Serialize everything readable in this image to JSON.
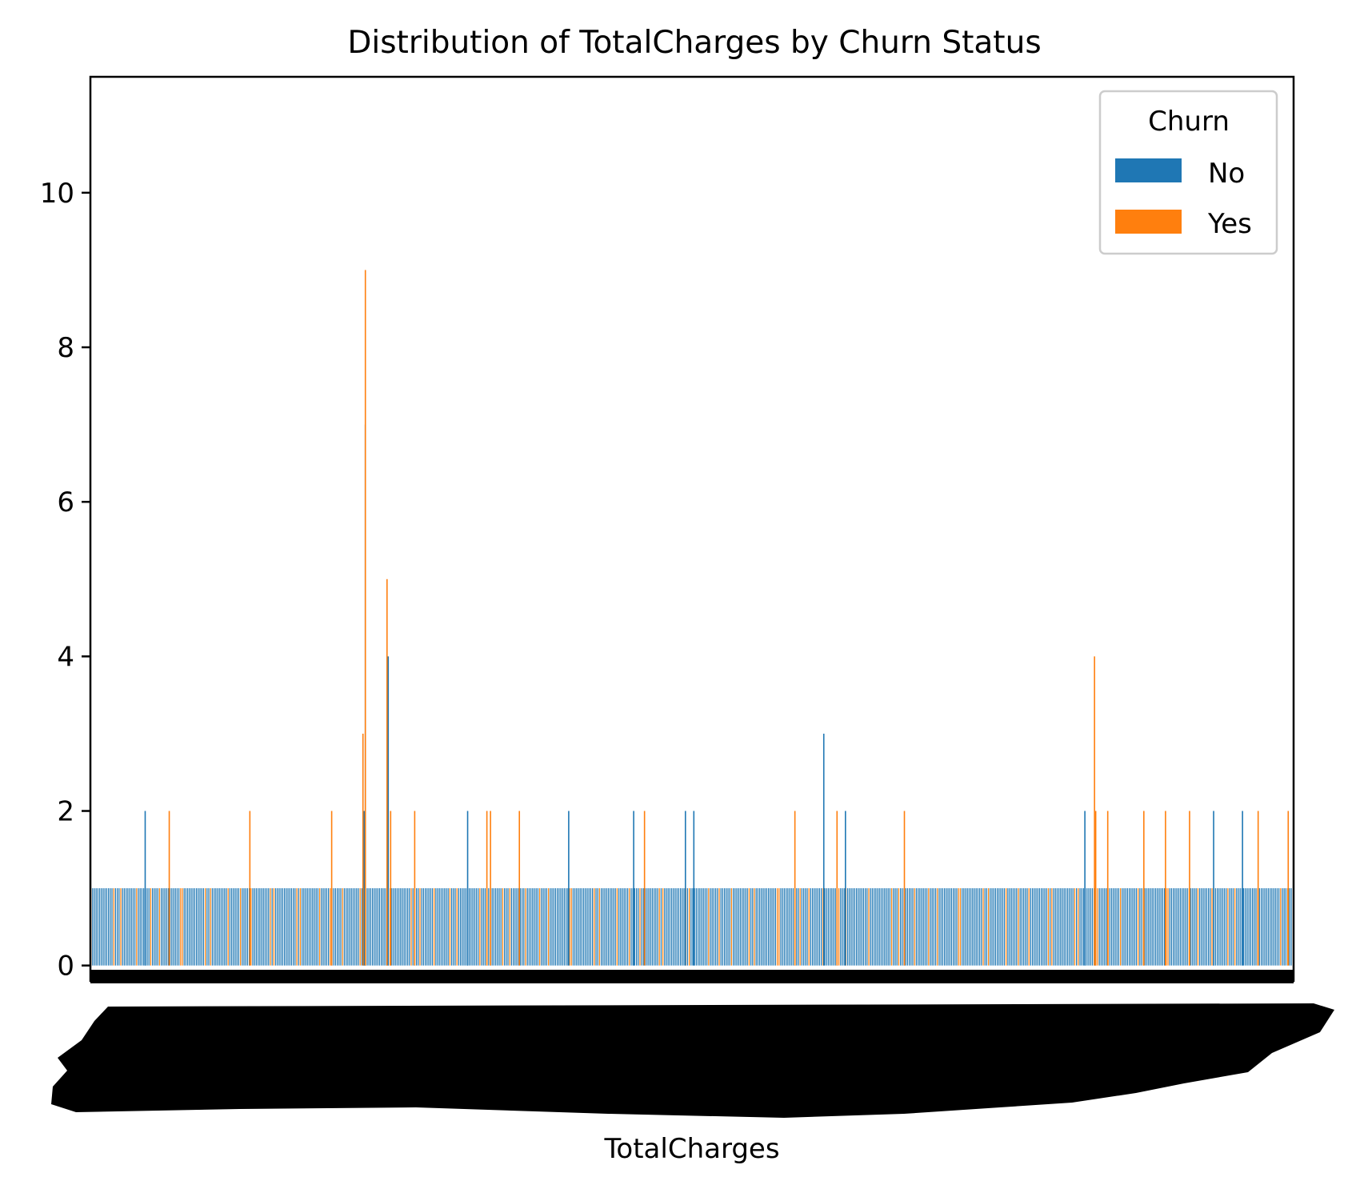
{
  "chart_data": {
    "type": "bar",
    "title": "Distribution of TotalCharges by Churn Status",
    "xlabel": "TotalCharges",
    "ylabel": "",
    "ylim": [
      -0.2,
      11.5
    ],
    "yticks": [
      0,
      2,
      4,
      6,
      8,
      10
    ],
    "grid": false,
    "legend": {
      "title": "Churn",
      "placement": "top-right",
      "entries": [
        {
          "name": "No",
          "color": "#1f77b4"
        },
        {
          "name": "Yes",
          "color": "#ff7f0e"
        }
      ]
    },
    "category_count_estimate": 6500,
    "baseline_count": 1,
    "notable_values": [
      {
        "series": "No",
        "approx_position": 0.045,
        "count": 2
      },
      {
        "series": "Yes",
        "approx_position": 0.065,
        "count": 2
      },
      {
        "series": "Yes",
        "approx_position": 0.132,
        "count": 2
      },
      {
        "series": "Yes",
        "approx_position": 0.2,
        "count": 2
      },
      {
        "series": "No",
        "approx_position": 0.227,
        "count": 2
      },
      {
        "series": "Yes",
        "approx_position": 0.226,
        "count": 3
      },
      {
        "series": "No",
        "approx_position": 0.228,
        "count": 7
      },
      {
        "series": "Yes",
        "approx_position": 0.228,
        "count": 9
      },
      {
        "series": "No",
        "approx_position": 0.247,
        "count": 4
      },
      {
        "series": "Yes",
        "approx_position": 0.246,
        "count": 5
      },
      {
        "series": "Yes",
        "approx_position": 0.249,
        "count": 2
      },
      {
        "series": "Yes",
        "approx_position": 0.269,
        "count": 2
      },
      {
        "series": "No",
        "approx_position": 0.313,
        "count": 2
      },
      {
        "series": "Yes",
        "approx_position": 0.329,
        "count": 2
      },
      {
        "series": "Yes",
        "approx_position": 0.332,
        "count": 2
      },
      {
        "series": "Yes",
        "approx_position": 0.356,
        "count": 2
      },
      {
        "series": "No",
        "approx_position": 0.397,
        "count": 2
      },
      {
        "series": "No",
        "approx_position": 0.451,
        "count": 2
      },
      {
        "series": "Yes",
        "approx_position": 0.46,
        "count": 2
      },
      {
        "series": "No",
        "approx_position": 0.494,
        "count": 2
      },
      {
        "series": "No",
        "approx_position": 0.501,
        "count": 2
      },
      {
        "series": "Yes",
        "approx_position": 0.585,
        "count": 2
      },
      {
        "series": "No",
        "approx_position": 0.609,
        "count": 3
      },
      {
        "series": "Yes",
        "approx_position": 0.62,
        "count": 2
      },
      {
        "series": "No",
        "approx_position": 0.627,
        "count": 2
      },
      {
        "series": "Yes",
        "approx_position": 0.676,
        "count": 2
      },
      {
        "series": "No",
        "approx_position": 0.826,
        "count": 2
      },
      {
        "series": "Yes",
        "approx_position": 0.834,
        "count": 4
      },
      {
        "series": "Yes",
        "approx_position": 0.835,
        "count": 2
      },
      {
        "series": "Yes",
        "approx_position": 0.845,
        "count": 2
      },
      {
        "series": "Yes",
        "approx_position": 0.875,
        "count": 2
      },
      {
        "series": "Yes",
        "approx_position": 0.893,
        "count": 2
      },
      {
        "series": "Yes",
        "approx_position": 0.913,
        "count": 2
      },
      {
        "series": "No",
        "approx_position": 0.933,
        "count": 2
      },
      {
        "series": "No",
        "approx_position": 0.957,
        "count": 2
      },
      {
        "series": "Yes",
        "approx_position": 0.97,
        "count": 2
      },
      {
        "series": "Yes",
        "approx_position": 0.995,
        "count": 2
      }
    ],
    "x_tick_labels_note": "thousands of overlapping rotated tick labels rendered as a solid black band"
  }
}
